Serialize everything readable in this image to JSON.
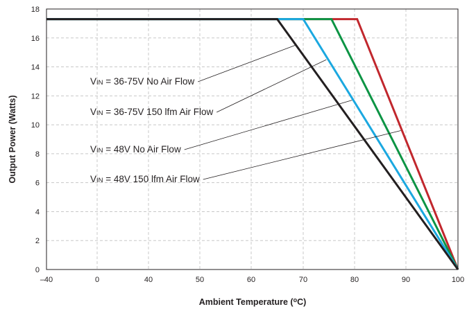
{
  "chart_data": {
    "type": "line",
    "title": "",
    "xlabel": "Ambient Temperature (ºC)",
    "xlabel_parts": {
      "main": "Ambient Temperature (",
      "sup": "o",
      "end": "C)"
    },
    "ylabel": "Output Power (Watts)",
    "xlim": [
      -40,
      100
    ],
    "ylim": [
      0,
      18
    ],
    "x_ticks": [
      {
        "v": -40,
        "label": "–40"
      },
      {
        "v": 0,
        "label": "0"
      },
      {
        "v": 40,
        "label": "40"
      },
      {
        "v": 50,
        "label": "50"
      },
      {
        "v": 60,
        "label": "60"
      },
      {
        "v": 70,
        "label": "70"
      },
      {
        "v": 80,
        "label": "80"
      },
      {
        "v": 90,
        "label": "90"
      },
      {
        "v": 100,
        "label": "100"
      }
    ],
    "y_ticks": [
      0,
      2,
      4,
      6,
      8,
      10,
      12,
      14,
      16,
      18
    ],
    "grid": "dashed gridlines on both axes",
    "series": [
      {
        "name": "VIN = 48V 150 lfm Air Flow",
        "color": "#c1272d",
        "x": [
          -40,
          80.5,
          100
        ],
        "y": [
          17.3,
          17.3,
          0
        ]
      },
      {
        "name": "VIN = 48V No Air Flow",
        "color": "#0c9444",
        "x": [
          -40,
          75.5,
          100
        ],
        "y": [
          17.3,
          17.3,
          0
        ]
      },
      {
        "name": "VIN = 36-75V 150 lfm Air Flow",
        "color": "#1ba8e0",
        "x": [
          -40,
          70,
          100
        ],
        "y": [
          17.3,
          17.3,
          0
        ]
      },
      {
        "name": "VIN = 36-75V No Air Flow",
        "color": "#231f20",
        "x": [
          -40,
          65,
          100
        ],
        "y": [
          17.3,
          17.3,
          0
        ]
      }
    ],
    "annotations": [
      {
        "pre": "V",
        "sub": "IN",
        "post": " = 36-75V No Air Flow",
        "target": [
          68.5,
          15.5
        ]
      },
      {
        "pre": "V",
        "sub": "IN",
        "post": " = 36-75V 150 lfm Air Flow",
        "target": [
          74.5,
          14.5
        ]
      },
      {
        "pre": "V",
        "sub": "IN",
        "post": " = 48V No Air Flow",
        "target": [
          79.5,
          11.7
        ]
      },
      {
        "pre": "V",
        "sub": "IN",
        "post": " = 48V 150 lfm Air Flow",
        "target": [
          89,
          9.6
        ]
      }
    ]
  }
}
